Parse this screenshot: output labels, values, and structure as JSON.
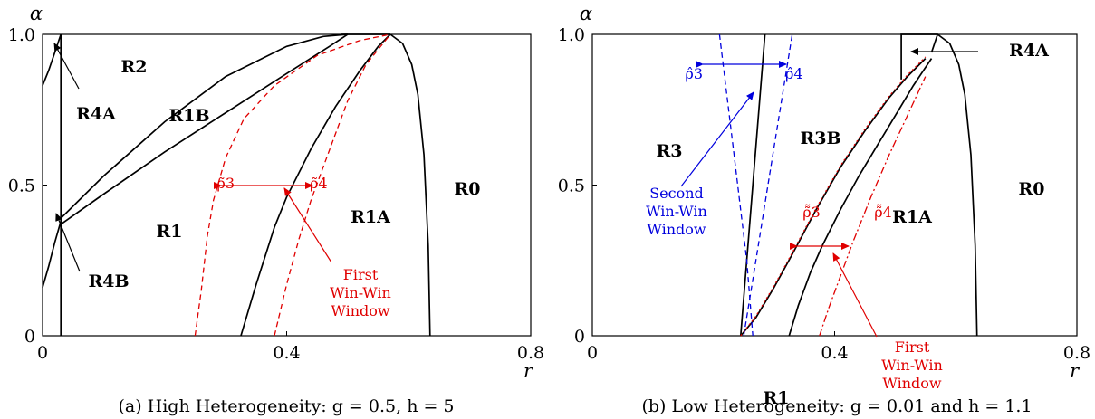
{
  "chart_data": [
    {
      "type": "line",
      "title": "(a) High Heterogeneity: g = 0.5, h = 5",
      "xlabel": "r",
      "ylabel": "α",
      "xlim": [
        0,
        0.8
      ],
      "ylim": [
        0,
        1.0
      ],
      "x_ticks": [
        "0",
        "0.4",
        "0.8"
      ],
      "y_ticks": [
        "0",
        "0.5",
        "1.0"
      ],
      "grid": false,
      "series": [
        {
          "color": "#000000",
          "dash": "solid",
          "x": [
            0,
            0.01,
            0.02,
            0.03
          ],
          "y": [
            0.83,
            0.88,
            0.94,
            1.0
          ]
        },
        {
          "color": "#000000",
          "dash": "solid",
          "x": [
            0.03,
            0.03
          ],
          "y": [
            0.0,
            1.0
          ]
        },
        {
          "color": "#000000",
          "dash": "solid",
          "x": [
            0,
            0.01,
            0.02,
            0.03
          ],
          "y": [
            0.16,
            0.23,
            0.31,
            0.38
          ]
        },
        {
          "color": "#000000",
          "dash": "solid",
          "x": [
            0.03,
            0.1,
            0.2,
            0.3,
            0.4,
            0.46,
            0.5
          ],
          "y": [
            0.39,
            0.53,
            0.71,
            0.86,
            0.96,
            0.993,
            1.0
          ]
        },
        {
          "color": "#000000",
          "dash": "solid",
          "x": [
            0.03,
            0.1,
            0.2,
            0.3,
            0.4,
            0.47,
            0.5
          ],
          "y": [
            0.37,
            0.47,
            0.61,
            0.74,
            0.87,
            0.96,
            1.0
          ]
        },
        {
          "color": "#000000",
          "dash": "solid",
          "x": [
            0.49,
            0.57
          ],
          "y": [
            1.0,
            1.0
          ]
        },
        {
          "color": "#000000",
          "dash": "solid",
          "x": [
            0.325,
            0.35,
            0.38,
            0.4,
            0.44,
            0.48,
            0.52,
            0.55,
            0.57
          ],
          "y": [
            0.0,
            0.17,
            0.36,
            0.46,
            0.62,
            0.76,
            0.88,
            0.96,
            1.0
          ]
        },
        {
          "color": "#000000",
          "dash": "solid",
          "x": [
            0.57,
            0.59,
            0.605,
            0.615,
            0.625,
            0.632,
            0.635
          ],
          "y": [
            1.0,
            0.97,
            0.9,
            0.8,
            0.6,
            0.3,
            0.0
          ]
        },
        {
          "name": "ρ̃3",
          "color": "#e00000",
          "dash": "dashed",
          "x": [
            0.25,
            0.26,
            0.27,
            0.28,
            0.3,
            0.33,
            0.38,
            0.45,
            0.52,
            0.57
          ],
          "y": [
            0.0,
            0.15,
            0.33,
            0.45,
            0.59,
            0.72,
            0.83,
            0.93,
            0.98,
            1.0
          ]
        },
        {
          "name": "ρ̃4",
          "color": "#e00000",
          "dash": "dashed",
          "x": [
            0.38,
            0.4,
            0.42,
            0.44,
            0.46,
            0.48,
            0.5,
            0.53,
            0.57
          ],
          "y": [
            0.0,
            0.17,
            0.32,
            0.45,
            0.56,
            0.67,
            0.78,
            0.9,
            1.0
          ]
        }
      ],
      "region_labels": [
        "R2",
        "R4A",
        "R1B",
        "R1",
        "R4B",
        "R1A",
        "R0"
      ],
      "annotations": [
        {
          "text": "ρ̃3",
          "color": "#e00000"
        },
        {
          "text": "ρ̃4",
          "color": "#e00000"
        },
        {
          "text": "First",
          "color": "#e00000"
        },
        {
          "text": "Win-Win",
          "color": "#e00000"
        },
        {
          "text": "Window",
          "color": "#e00000"
        }
      ]
    },
    {
      "type": "line",
      "title": "(b) Low Heterogeneity: g = 0.01 and h = 1.1",
      "xlabel": "r",
      "ylabel": "α",
      "xlim": [
        0,
        0.8
      ],
      "ylim": [
        0,
        1.0
      ],
      "x_ticks": [
        "0",
        "0.4",
        "0.8"
      ],
      "y_ticks": [
        "0",
        "0.5",
        "1.0"
      ],
      "grid": false,
      "series": [
        {
          "color": "#000000",
          "dash": "solid",
          "x": [
            0.245,
            0.255,
            0.265,
            0.275,
            0.285
          ],
          "y": [
            0.0,
            0.25,
            0.5,
            0.75,
            1.0
          ]
        },
        {
          "color": "#000000",
          "dash": "solid",
          "x": [
            0.245,
            0.27,
            0.3,
            0.33,
            0.37,
            0.41,
            0.45,
            0.49,
            0.52,
            0.55
          ],
          "y": [
            0.0,
            0.06,
            0.16,
            0.27,
            0.42,
            0.56,
            0.68,
            0.79,
            0.86,
            0.92
          ]
        },
        {
          "color": "#000000",
          "dash": "solid",
          "x": [
            0.325,
            0.34,
            0.36,
            0.38,
            0.41,
            0.44,
            0.47,
            0.5,
            0.53,
            0.56
          ],
          "y": [
            0.0,
            0.1,
            0.21,
            0.3,
            0.42,
            0.53,
            0.63,
            0.73,
            0.83,
            0.92
          ]
        },
        {
          "color": "#000000",
          "dash": "solid",
          "x": [
            0.51,
            0.51,
            0.57
          ],
          "y": [
            0.85,
            1.0,
            1.0
          ]
        },
        {
          "color": "#000000",
          "dash": "solid",
          "x": [
            0.56,
            0.57,
            0.59,
            0.605,
            0.615,
            0.625,
            0.632,
            0.635
          ],
          "y": [
            0.94,
            1.0,
            0.97,
            0.9,
            0.8,
            0.6,
            0.3,
            0.0
          ]
        },
        {
          "name": "ρ̂3",
          "color": "#0000dd",
          "dash": "dashed",
          "x": [
            0.21,
            0.225,
            0.24,
            0.255,
            0.265
          ],
          "y": [
            1.0,
            0.75,
            0.5,
            0.25,
            0.0
          ]
        },
        {
          "name": "ρ̂4",
          "color": "#0000dd",
          "dash": "dashed",
          "x": [
            0.25,
            0.27,
            0.29,
            0.31,
            0.33
          ],
          "y": [
            0.0,
            0.25,
            0.5,
            0.75,
            1.0
          ]
        },
        {
          "name": "ρ̃̃3",
          "color": "#e00000",
          "dash": "dotted",
          "x": [
            0.245,
            0.27,
            0.3,
            0.33,
            0.37,
            0.41,
            0.45,
            0.49,
            0.52,
            0.55
          ],
          "y": [
            0.0,
            0.065,
            0.165,
            0.275,
            0.425,
            0.565,
            0.685,
            0.795,
            0.865,
            0.925
          ]
        },
        {
          "name": "ρ̃̃4",
          "color": "#e00000",
          "dash": "dashdot",
          "x": [
            0.375,
            0.39,
            0.41,
            0.43,
            0.46,
            0.49,
            0.52,
            0.55
          ],
          "y": [
            0.0,
            0.09,
            0.2,
            0.31,
            0.46,
            0.6,
            0.73,
            0.86
          ]
        }
      ],
      "region_labels": [
        "R3",
        "R3B",
        "R4A",
        "R1A",
        "R1",
        "R0"
      ],
      "annotations": [
        {
          "text": "ρ̂3",
          "color": "#0000dd"
        },
        {
          "text": "ρ̂4",
          "color": "#0000dd"
        },
        {
          "text": "Second",
          "color": "#0000dd"
        },
        {
          "text": "Win-Win",
          "color": "#0000dd"
        },
        {
          "text": "Window",
          "color": "#0000dd"
        },
        {
          "text": "ρ̃̃3",
          "color": "#e00000"
        },
        {
          "text": "ρ̃̃4",
          "color": "#e00000"
        },
        {
          "text": "First",
          "color": "#e00000"
        },
        {
          "text": "Win-Win",
          "color": "#e00000"
        },
        {
          "text": "Window",
          "color": "#e00000"
        }
      ]
    }
  ]
}
